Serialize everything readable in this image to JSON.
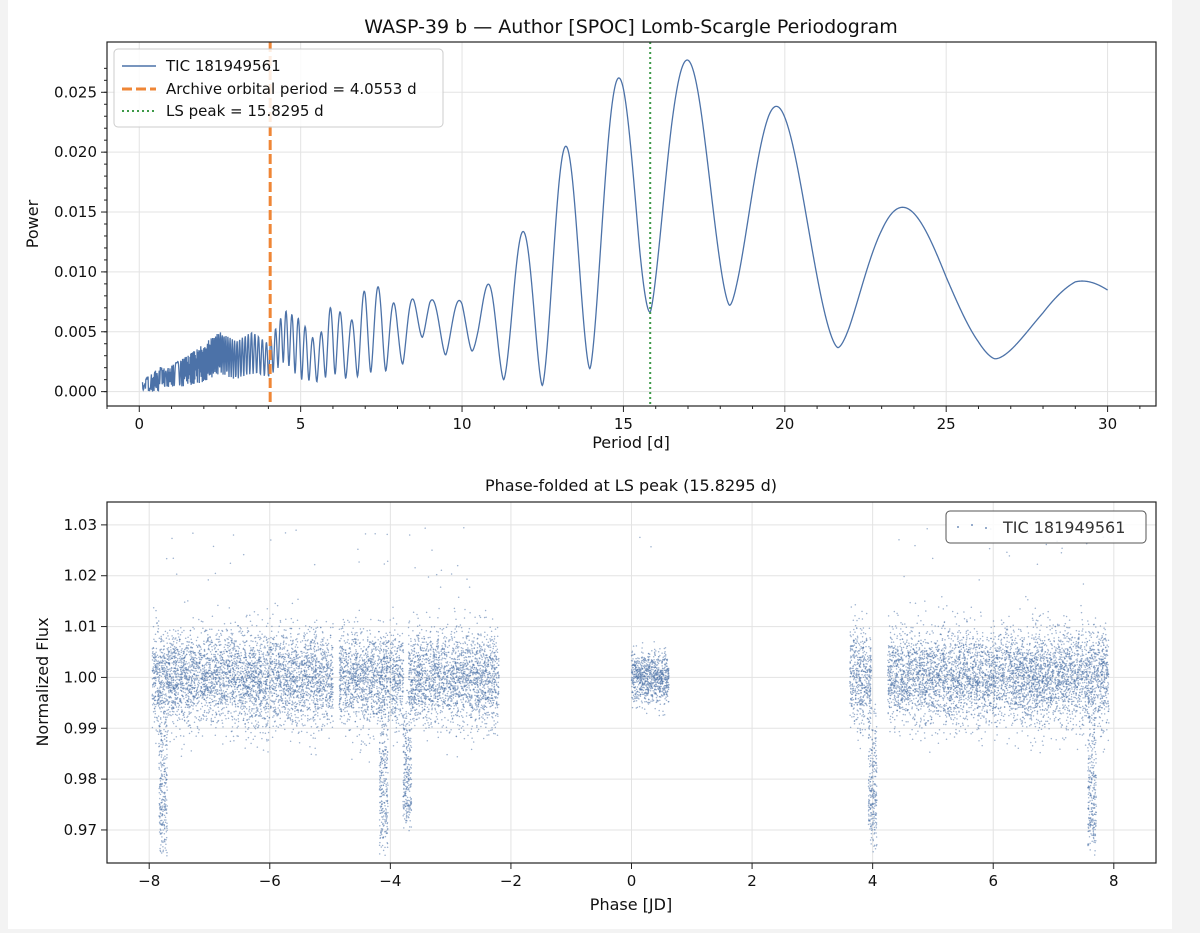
{
  "chart_data": [
    {
      "type": "line",
      "title": "WASP-39 b — Author [SPOC] Lomb-Scargle Periodogram",
      "xlabel": "Period [d]",
      "ylabel": "Power",
      "xlim": [
        -1,
        31.5
      ],
      "ylim": [
        -0.0012,
        0.0292
      ],
      "xticks": [
        0,
        5,
        10,
        15,
        20,
        25,
        30
      ],
      "xtick_labels": [
        "0",
        "5",
        "10",
        "15",
        "20",
        "25",
        "30"
      ],
      "yticks": [
        0,
        0.005,
        0.01,
        0.015,
        0.02,
        0.025
      ],
      "ytick_labels": [
        "0.000",
        "0.005",
        "0.010",
        "0.015",
        "0.020",
        "0.025"
      ],
      "grid": true,
      "legend_position": "top-left",
      "series": [
        {
          "name": "TIC 181949561",
          "color": "#4c72a8",
          "style": "solid",
          "envelope": {
            "x": [
              0.1,
              0.5,
              1.0,
              1.5,
              2.0,
              2.5,
              3.0,
              3.5,
              4.0,
              4.5,
              5.0,
              5.5,
              6.0,
              6.5,
              7.0,
              7.5,
              8.0,
              8.5,
              9.0,
              9.5,
              10.0,
              10.5,
              11.0,
              11.5,
              12.0,
              12.5,
              13.0,
              13.5,
              14.0,
              14.5,
              15.0,
              15.5,
              16.0,
              16.5,
              17.0,
              17.5,
              18.0,
              18.5,
              19.0,
              19.5,
              20.0,
              21.0,
              22.0,
              23.0,
              24.0,
              25.0,
              26.0,
              27.0,
              28.0,
              29.0,
              30.0
            ],
            "upper": [
              0.0008,
              0.002,
              0.0022,
              0.003,
              0.004,
              0.005,
              0.0042,
              0.005,
              0.004,
              0.0068,
              0.006,
              0.004,
              0.0076,
              0.0055,
              0.0086,
              0.0088,
              0.007,
              0.0078,
              0.008,
              0.0062,
              0.008,
              0.0075,
              0.01,
              0.0115,
              0.014,
              0.0165,
              0.0195,
              0.022,
              0.024,
              0.0255,
              0.0265,
              0.0272,
              0.0275,
              0.0276,
              0.0277,
              0.0276,
              0.0272,
              0.0265,
              0.0255,
              0.0245,
              0.0233,
              0.021,
              0.0185,
              0.0165,
              0.015,
              0.0135,
              0.0125,
              0.0113,
              0.0105,
              0.01,
              0.0085
            ],
            "lower": [
              0.0,
              0.0,
              0.0003,
              0.0005,
              0.0008,
              0.0015,
              0.001,
              0.0015,
              0.0012,
              0.0025,
              0.001,
              0.0008,
              0.0015,
              0.001,
              0.0015,
              0.0018,
              0.0015,
              0.004,
              0.005,
              0.003,
              0.004,
              0.003,
              0.001,
              0.001,
              0.001,
              0.0005,
              0.001,
              0.001,
              0.002,
              0.0035,
              0.005,
              0.005,
              0.0075,
              0.0095,
              0.01,
              0.008,
              0.0075,
              0.007,
              0.006,
              0.005,
              0.0045,
              0.004,
              0.0035,
              0.0035,
              0.0035,
              0.003,
              0.003,
              0.0025,
              0.002,
              0.002,
              0.0024
            ]
          }
        },
        {
          "name": "Archive orbital period = 4.0553 d",
          "color": "#ef8636",
          "style": "dashed",
          "x": 4.0553
        },
        {
          "name": "LS peak = 15.8295 d",
          "color": "#3d9a48",
          "style": "dotted",
          "x": 15.8295
        }
      ]
    },
    {
      "type": "scatter",
      "title": "Phase-folded at LS peak (15.8295 d)",
      "xlabel": "Phase [JD]",
      "ylabel": "Normalized Flux",
      "xlim": [
        -8.7,
        8.7
      ],
      "ylim": [
        0.9635,
        1.0345
      ],
      "xticks": [
        -8,
        -6,
        -4,
        -2,
        0,
        2,
        4,
        6,
        8
      ],
      "xtick_labels": [
        "−8",
        "−6",
        "−4",
        "−2",
        "0",
        "2",
        "4",
        "6",
        "8"
      ],
      "yticks": [
        0.97,
        0.98,
        0.99,
        1.0,
        1.01,
        1.02,
        1.03
      ],
      "ytick_labels": [
        "0.97",
        "0.98",
        "0.99",
        "1.00",
        "1.01",
        "1.02",
        "1.03"
      ],
      "grid": true,
      "legend_position": "top-right",
      "series": [
        {
          "name": "TIC 181949561",
          "color": "#4c72a8",
          "segments": [
            {
              "x_range": [
                -7.95,
                -4.95
              ],
              "center": 1.0,
              "spread": 0.0047
            },
            {
              "x_range": [
                -4.85,
                -3.78
              ],
              "center": 1.0,
              "spread": 0.0047
            },
            {
              "x_range": [
                -3.7,
                -2.2
              ],
              "center": 1.0,
              "spread": 0.0047
            },
            {
              "x_range": [
                0.0,
                0.62
              ],
              "center": 1.0,
              "spread": 0.0025
            },
            {
              "x_range": [
                3.62,
                3.98
              ],
              "center": 1.0,
              "spread": 0.005
            },
            {
              "x_range": [
                4.25,
                7.92
              ],
              "center": 1.0,
              "spread": 0.0047
            }
          ],
          "dips": [
            {
              "x": -7.77,
              "depth": 0.031
            },
            {
              "x": -4.11,
              "depth": 0.031
            },
            {
              "x": -3.72,
              "depth": 0.026
            },
            {
              "x": 4.0,
              "depth": 0.029
            },
            {
              "x": 7.64,
              "depth": 0.031
            }
          ]
        }
      ]
    }
  ]
}
